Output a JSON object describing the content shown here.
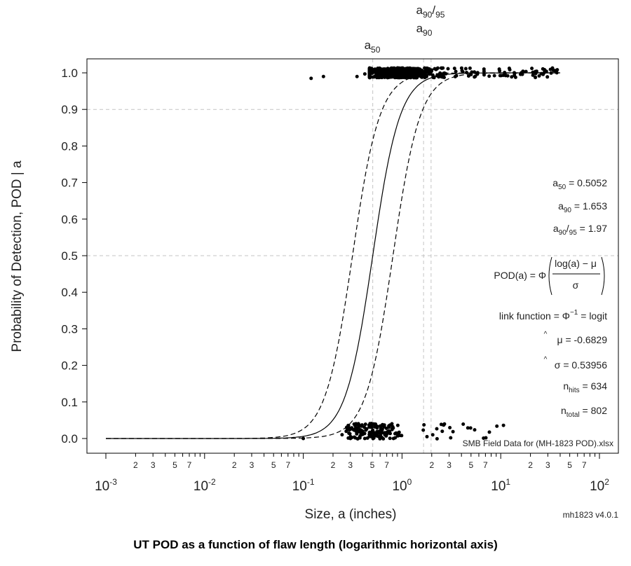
{
  "chart_data": {
    "type": "scatter",
    "x_scale": "log",
    "xlim": [
      0.001,
      100
    ],
    "ylim": [
      0.0,
      1.0
    ],
    "xlabel": "Size, a   (inches)",
    "ylabel": "Probability of Detection, POD | a",
    "y_ticks": [
      "0.0",
      "0.1",
      "0.2",
      "0.3",
      "0.4",
      "0.5",
      "0.6",
      "0.7",
      "0.8",
      "0.9",
      "1.0"
    ],
    "x_ticks_major": [
      {
        "base": "10",
        "exp": "-3"
      },
      {
        "base": "10",
        "exp": "-2"
      },
      {
        "base": "10",
        "exp": "-1"
      },
      {
        "base": "10",
        "exp": "0"
      },
      {
        "base": "10",
        "exp": "1"
      },
      {
        "base": "10",
        "exp": "2"
      }
    ],
    "x_minor_labels": [
      "2",
      "3",
      "5",
      "7"
    ],
    "reference_lines": {
      "horizontal": [
        0.5,
        0.9
      ],
      "vertical": [
        {
          "x": 0.5052,
          "base": "a",
          "sub": "50"
        },
        {
          "x": 1.653,
          "base": "a",
          "sub": "90"
        },
        {
          "x": 1.97,
          "base": "a",
          "sub": "90",
          "mid": "/",
          "sub2": "95"
        }
      ]
    },
    "curves": [
      {
        "role": "pod",
        "style": "solid",
        "mu": -0.6829,
        "sigma": 0.53956,
        "link": "logit"
      },
      {
        "role": "lower_confidence",
        "style": "dashed",
        "mu": -0.6829,
        "sigma": 0.53956,
        "shift": 0.205
      },
      {
        "role": "upper_confidence",
        "style": "dashed",
        "mu": -0.6829,
        "sigma": 0.53956,
        "shift": -0.205
      }
    ],
    "hits_summary": {
      "y": 1.0,
      "n": 634,
      "x_range": [
        0.12,
        38
      ]
    },
    "misses_summary": {
      "y": 0.0,
      "n": 168,
      "x_range": [
        0.1,
        16
      ]
    },
    "stats": {
      "a50": {
        "base": "a",
        "sub": "50",
        "value": "0.5052"
      },
      "a90": {
        "base": "a",
        "sub": "90",
        "value": "1.653"
      },
      "a9095": {
        "base": "a",
        "sub": "90",
        "mid": "/",
        "sub2": "95",
        "value": "1.97"
      },
      "pod_formula": {
        "lhs": "POD(a) = Φ",
        "numerator": "log(a) − μ",
        "denominator": "σ"
      },
      "link": {
        "label": "link function =",
        "phi": "Φ",
        "sup": "−1",
        "rhs": "= logit"
      },
      "mu_hat": {
        "hat": "^",
        "symbol": "μ",
        "value": "= -0.6829"
      },
      "sigma_hat": {
        "hat": "^",
        "symbol": "σ",
        "value": "= 0.53956"
      },
      "n_hits": {
        "base": "n",
        "sub": "hits",
        "value": "= 634"
      },
      "n_total": {
        "base": "n",
        "sub": "total",
        "value": "= 802"
      }
    },
    "data_file": "SMB Field Data for (MH-1823 POD).xlsx",
    "version": "mh1823 v4.0.1"
  },
  "caption": "UT POD as a function of flaw length (logarithmic horizontal axis)"
}
